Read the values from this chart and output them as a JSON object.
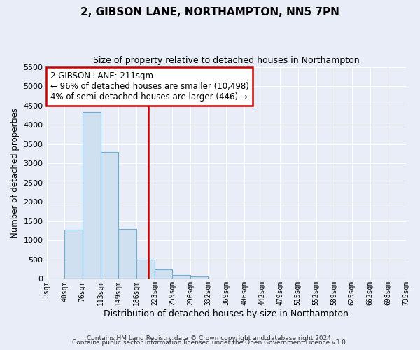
{
  "title": "2, GIBSON LANE, NORTHAMPTON, NN5 7PN",
  "subtitle": "Size of property relative to detached houses in Northampton",
  "xlabel": "Distribution of detached houses by size in Northampton",
  "ylabel": "Number of detached properties",
  "footer_line1": "Contains HM Land Registry data © Crown copyright and database right 2024.",
  "footer_line2": "Contains public sector information licensed under the Open Government Licence v3.0.",
  "bin_labels": [
    "3sqm",
    "40sqm",
    "76sqm",
    "113sqm",
    "149sqm",
    "186sqm",
    "223sqm",
    "259sqm",
    "296sqm",
    "332sqm",
    "369sqm",
    "406sqm",
    "442sqm",
    "479sqm",
    "515sqm",
    "552sqm",
    "589sqm",
    "625sqm",
    "662sqm",
    "698sqm",
    "735sqm"
  ],
  "bar_values": [
    0,
    1270,
    4330,
    3290,
    1290,
    490,
    240,
    90,
    55,
    0,
    0,
    0,
    0,
    0,
    0,
    0,
    0,
    0,
    0,
    0
  ],
  "bin_edges": [
    3,
    40,
    76,
    113,
    149,
    186,
    223,
    259,
    296,
    332,
    369,
    406,
    442,
    479,
    515,
    552,
    589,
    625,
    662,
    698,
    735
  ],
  "property_value": 211,
  "annotation_title": "2 GIBSON LANE: 211sqm",
  "annotation_line1": "← 96% of detached houses are smaller (10,498)",
  "annotation_line2": "4% of semi-detached houses are larger (446) →",
  "bar_color": "#cfe0f0",
  "bar_edge_color": "#6baed6",
  "vline_color": "#cc0000",
  "annotation_box_color": "#ffffff",
  "annotation_box_edge": "#cc0000",
  "ylim": [
    0,
    5500
  ],
  "yticks": [
    0,
    500,
    1000,
    1500,
    2000,
    2500,
    3000,
    3500,
    4000,
    4500,
    5000,
    5500
  ],
  "background_color": "#e8edf8",
  "grid_color": "#ffffff",
  "title_fontsize": 11,
  "subtitle_fontsize": 9
}
